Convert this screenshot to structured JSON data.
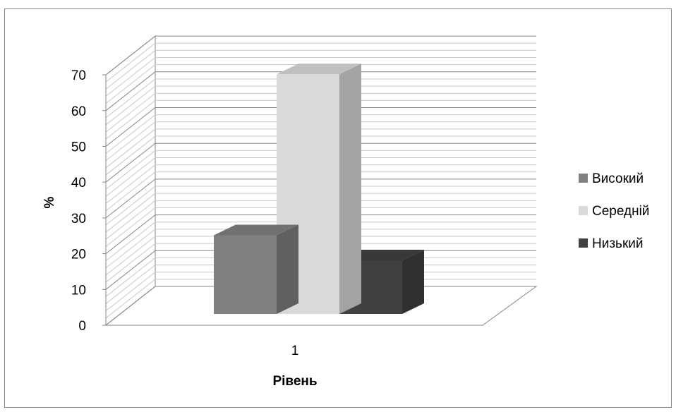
{
  "chart_data": {
    "type": "bar",
    "view": "3d-clustered-column",
    "categories": [
      "1"
    ],
    "series": [
      {
        "name": "Високий",
        "values": [
          22
        ],
        "color": "#808080"
      },
      {
        "name": "Середній",
        "values": [
          67
        ],
        "color": "#d9d9d9"
      },
      {
        "name": "Низький",
        "values": [
          15
        ],
        "color": "#404040"
      }
    ],
    "xlabel": "Рівень",
    "ylabel": "%",
    "ylim": [
      0,
      70
    ],
    "yticks": [
      "0",
      "10",
      "20",
      "30",
      "40",
      "50",
      "60",
      "70"
    ],
    "grid": true,
    "legend": "right"
  }
}
